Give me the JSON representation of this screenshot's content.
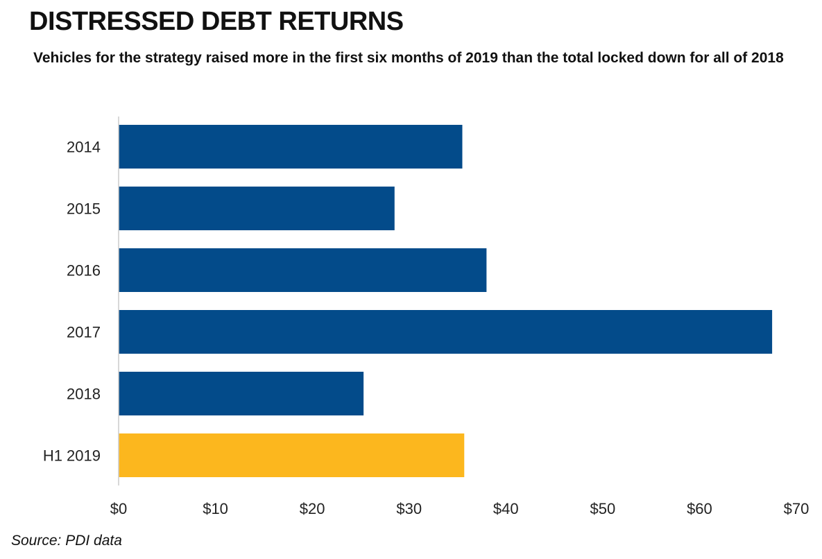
{
  "title": "DISTRESSED DEBT RETURNS",
  "subtitle": "Vehicles for the strategy raised more in the first six months of 2019 than the total locked down for all of 2018",
  "source": "Source: PDI data",
  "chart_data": {
    "type": "bar",
    "orientation": "horizontal",
    "title": "DISTRESSED DEBT RETURNS",
    "subtitle": "Vehicles for the strategy raised more in the first six months of 2019 than the total locked down for all of 2018",
    "xlabel": "",
    "ylabel": "",
    "categories": [
      "2014",
      "2015",
      "2016",
      "2017",
      "2018",
      "H1 2019"
    ],
    "values": [
      35.5,
      28.5,
      38.0,
      67.5,
      25.3,
      35.7
    ],
    "bar_colors": [
      "#034B8A",
      "#034B8A",
      "#034B8A",
      "#034B8A",
      "#034B8A",
      "#FCB71E"
    ],
    "xlim": [
      0,
      70
    ],
    "x_ticks": [
      0,
      10,
      20,
      30,
      40,
      50,
      60,
      70
    ],
    "x_tick_labels": [
      "$0",
      "$10",
      "$20",
      "$30",
      "$40",
      "$50",
      "$60",
      "$70"
    ],
    "grid": false,
    "legend": "none"
  }
}
